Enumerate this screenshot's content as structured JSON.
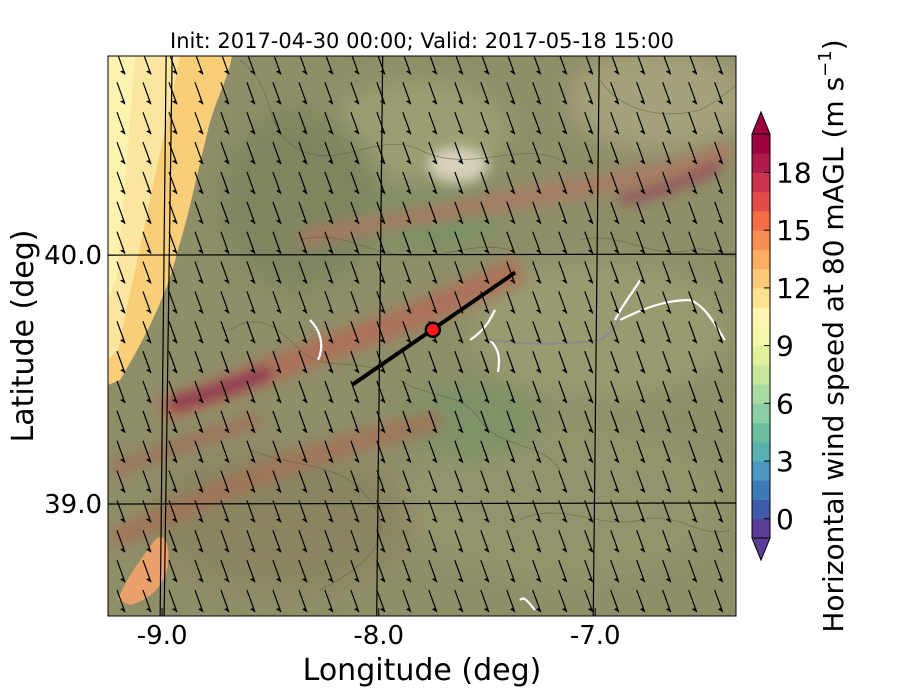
{
  "chart_data": {
    "type": "heatmap",
    "title": "Init: 2017-04-30 00:00; Valid: 2017-05-18 15:00",
    "xlabel": "Longitude (deg)",
    "ylabel": "Latitude (deg)",
    "xlim": [
      -9.25,
      -6.35
    ],
    "ylim": [
      38.55,
      40.8
    ],
    "x_ticks": [
      -9.0,
      -8.0,
      -7.0
    ],
    "x_tick_labels": [
      "-9.0",
      "-8.0",
      "-7.0"
    ],
    "y_ticks": [
      39.0,
      40.0
    ],
    "y_tick_labels": [
      "39.0",
      "40.0"
    ],
    "grid": true,
    "colorbar": {
      "label": "Horizontal wind speed at 80 mAGL (m s$^{-1}$)",
      "label_main": "Horizontal wind speed at 80 mAGL (m s",
      "label_exp": "−1",
      "label_close": ")",
      "min": -1,
      "max": 20,
      "extend": "both",
      "tick_values": [
        0,
        3,
        6,
        9,
        12,
        15,
        18
      ],
      "tick_labels": [
        "0",
        "3",
        "6",
        "9",
        "12",
        "15",
        "18"
      ],
      "colors": [
        "#5b3d99",
        "#3d5ba8",
        "#3f7ab8",
        "#4d97bf",
        "#5ab0b0",
        "#6bbf9e",
        "#8acfa3",
        "#a9dca2",
        "#c7e79c",
        "#e1f19b",
        "#f3f9a8",
        "#fef6b0",
        "#fee290",
        "#fdc877",
        "#fcac63",
        "#f98e52",
        "#f26c45",
        "#e14b48",
        "#cb334c",
        "#af1c4c",
        "#9e0142"
      ]
    },
    "transect": {
      "start": [
        -8.12,
        39.48
      ],
      "end": [
        -7.37,
        39.93
      ],
      "point": [
        -7.75,
        39.7
      ]
    },
    "wind_vectors": {
      "direction": "north-northwest wind (arrows pointing south-southeast)",
      "lon_step": 0.12,
      "lat_step": 0.12
    }
  }
}
